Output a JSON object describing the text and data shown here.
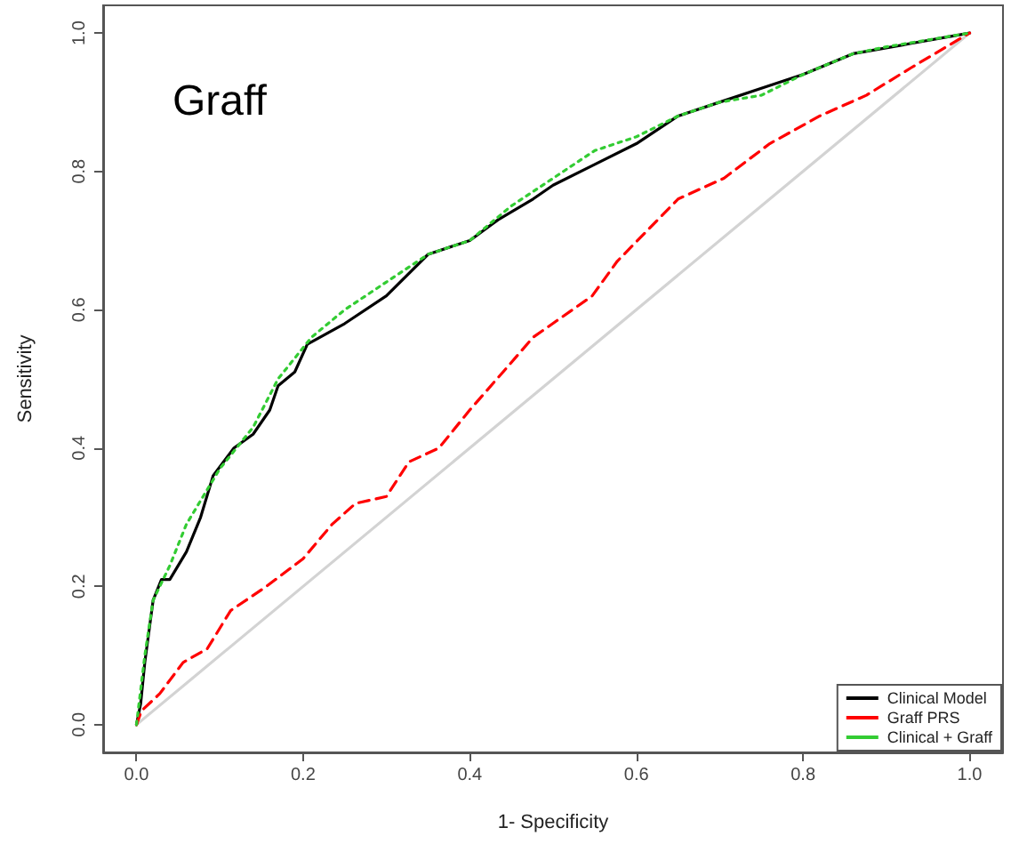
{
  "chart_data": {
    "type": "line",
    "xlabel": "1- Specificity",
    "ylabel": "Sensitivity",
    "annotations": [
      "Graff"
    ],
    "xlim": [
      -0.04,
      1.04
    ],
    "ylim": [
      -0.04,
      1.04
    ],
    "xticks": [
      {
        "value": 0,
        "label": "0.0"
      },
      0.2,
      0.4,
      0.6,
      0.8,
      {
        "value": 1,
        "label": "1.0"
      }
    ],
    "yticks": [
      {
        "value": 0,
        "label": "0.0"
      },
      0.2,
      0.4,
      0.6,
      0.8,
      {
        "value": 1,
        "label": "1.0"
      }
    ],
    "grid": false,
    "legend": "bottom right",
    "marker": "none",
    "series": [
      {
        "name": "Clinical Model",
        "color": "#000000",
        "line_style": "solid",
        "x": [
          0,
          0.005,
          0.01,
          0.02,
          0.03,
          0.04,
          0.06,
          0.077,
          0.092,
          0.117,
          0.14,
          0.16,
          0.17,
          0.19,
          0.205,
          0.25,
          0.3,
          0.35,
          0.4,
          0.434,
          0.476,
          0.5,
          0.55,
          0.6,
          0.65,
          0.7,
          0.75,
          0.8,
          0.86,
          0.93,
          1
        ],
        "values": [
          0,
          0.03,
          0.09,
          0.18,
          0.21,
          0.21,
          0.25,
          0.3,
          0.36,
          0.4,
          0.42,
          0.455,
          0.49,
          0.51,
          0.55,
          0.58,
          0.62,
          0.68,
          0.7,
          0.73,
          0.76,
          0.78,
          0.81,
          0.84,
          0.88,
          0.9,
          0.92,
          0.94,
          0.97,
          0.985,
          1
        ]
      },
      {
        "name": "Graff PRS",
        "color": "#ff0000",
        "line_style": "dashed",
        "x": [
          0,
          0.006,
          0.028,
          0.056,
          0.085,
          0.113,
          0.156,
          0.2,
          0.235,
          0.263,
          0.3,
          0.327,
          0.363,
          0.4,
          0.44,
          0.476,
          0.547,
          0.577,
          0.65,
          0.705,
          0.76,
          0.82,
          0.876,
          0.93,
          1
        ],
        "values": [
          0,
          0.02,
          0.045,
          0.09,
          0.11,
          0.165,
          0.2,
          0.24,
          0.29,
          0.32,
          0.33,
          0.38,
          0.4,
          0.455,
          0.51,
          0.56,
          0.62,
          0.67,
          0.76,
          0.79,
          0.84,
          0.88,
          0.91,
          0.95,
          1
        ]
      },
      {
        "name": "Clinical + Graff",
        "color": "#33cc33",
        "line_style": "dotted",
        "x": [
          0,
          0.01,
          0.02,
          0.04,
          0.06,
          0.08,
          0.1,
          0.14,
          0.17,
          0.19,
          0.21,
          0.25,
          0.3,
          0.35,
          0.4,
          0.45,
          0.5,
          0.55,
          0.6,
          0.65,
          0.7,
          0.75,
          0.8,
          0.86,
          0.9,
          0.95,
          1
        ],
        "values": [
          0,
          0.1,
          0.18,
          0.23,
          0.29,
          0.33,
          0.37,
          0.43,
          0.5,
          0.53,
          0.56,
          0.6,
          0.64,
          0.68,
          0.7,
          0.75,
          0.79,
          0.83,
          0.85,
          0.88,
          0.9,
          0.91,
          0.94,
          0.97,
          0.98,
          0.99,
          1
        ]
      },
      {
        "color": "#d3d3d3",
        "line_style": "solid",
        "x": [
          0,
          1
        ],
        "values": [
          0,
          1
        ]
      }
    ]
  }
}
